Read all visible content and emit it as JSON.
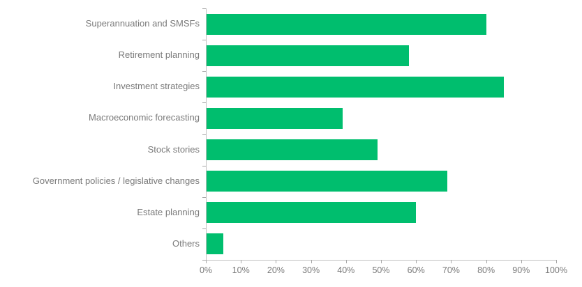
{
  "chart_data": {
    "type": "bar",
    "orientation": "horizontal",
    "title": "",
    "xlabel": "",
    "ylabel": "",
    "categories": [
      "Superannuation and SMSFs",
      "Retirement planning",
      "Investment strategies",
      "Macroeconomic forecasting",
      "Stock stories",
      "Government policies / legislative changes",
      "Estate planning",
      "Others"
    ],
    "values": [
      80,
      58,
      85,
      39,
      49,
      69,
      60,
      5
    ],
    "unit": "%",
    "xlim": [
      0,
      100
    ],
    "x_tick_step": 10,
    "x_tick_labels": [
      "0%",
      "10%",
      "20%",
      "30%",
      "40%",
      "50%",
      "60%",
      "70%",
      "80%",
      "90%",
      "100%"
    ],
    "grid": false,
    "legend": false,
    "colors": {
      "bar": "#00be6e",
      "axis_line": "#c0c0c0",
      "tick_mark": "#a6a6a6",
      "label_text": "#7a7a7a"
    }
  }
}
